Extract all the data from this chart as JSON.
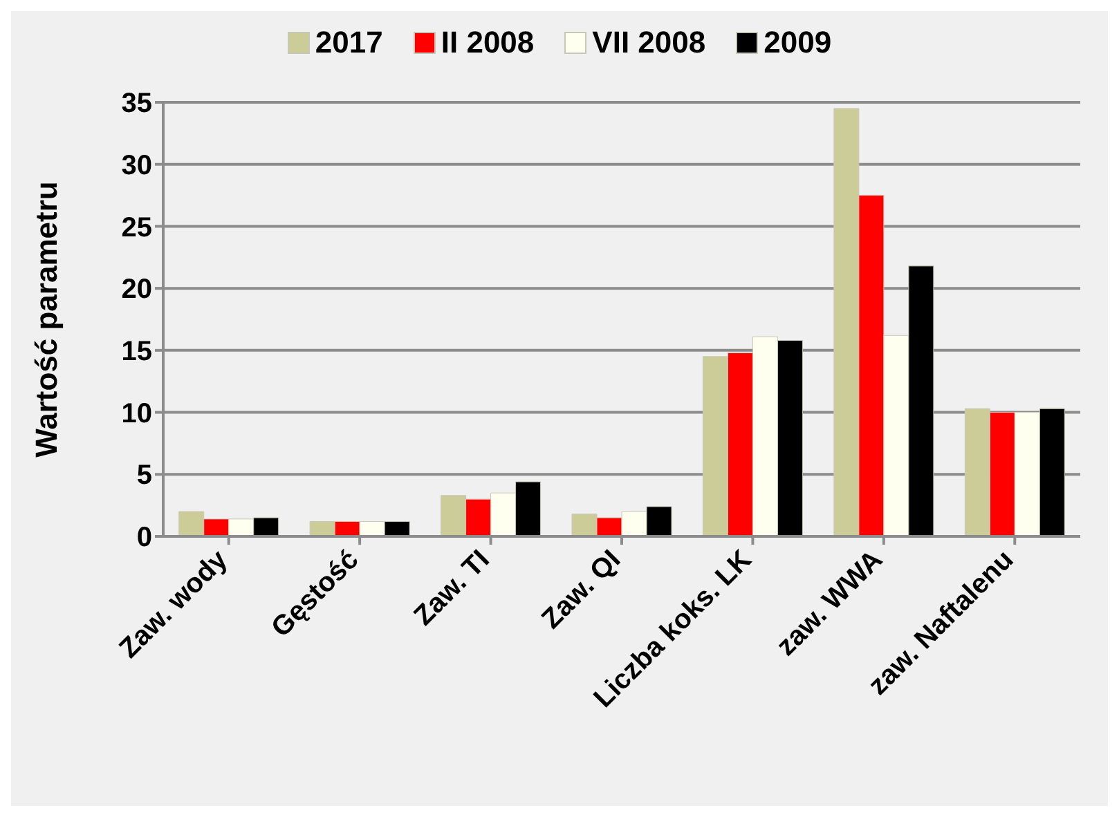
{
  "chart_data": {
    "type": "bar",
    "ylabel": "Wartość parametru",
    "categories": [
      "Zaw.  wody",
      "Gęstość",
      "Zaw. TI",
      "Zaw. QI",
      "Liczba koks. LK",
      "zaw. WWA",
      "zaw. Naftalenu"
    ],
    "series": [
      {
        "name": "2017",
        "color": "#cccc99",
        "values": [
          2.0,
          1.2,
          3.3,
          1.8,
          14.5,
          34.5,
          10.3
        ]
      },
      {
        "name": "II 2008",
        "color": "#ff0000",
        "values": [
          1.4,
          1.2,
          3.0,
          1.5,
          14.8,
          27.5,
          10.0
        ]
      },
      {
        "name": "VII 2008",
        "color": "#fffff0",
        "values": [
          1.4,
          1.2,
          3.5,
          2.0,
          16.1,
          16.2,
          10.0
        ]
      },
      {
        "name": "2009",
        "color": "#000000",
        "values": [
          1.5,
          1.2,
          4.4,
          2.4,
          15.8,
          21.8,
          10.3
        ]
      }
    ],
    "ylim": [
      0,
      35
    ],
    "yticks": [
      0,
      5,
      10,
      15,
      20,
      25,
      30,
      35
    ],
    "grid": "y",
    "legend": "top"
  }
}
